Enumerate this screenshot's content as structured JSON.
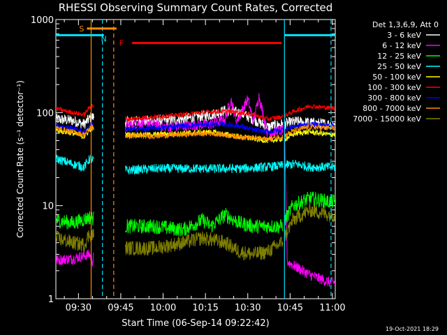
{
  "chart_data": {
    "type": "line",
    "title": "RHESSI Observing Summary Count Rates, Corrected",
    "xlabel": "Start Time (06-Sep-14 09:22:42)",
    "ylabel": "Corrected Count Rate (s⁻¹ detector⁻¹)",
    "ylim": [
      1,
      1000
    ],
    "yscale": "log",
    "yticks": [
      {
        "value": 1,
        "label": "1"
      },
      {
        "value": 10,
        "label": "10"
      },
      {
        "value": 100,
        "label": "100"
      },
      {
        "value": 1000,
        "label": "1000"
      }
    ],
    "xlim_min": [
      0,
      99
    ],
    "xticks": [
      {
        "min": 8,
        "label": "09:30"
      },
      {
        "min": 23,
        "label": "09:45"
      },
      {
        "min": 38,
        "label": "10:00"
      },
      {
        "min": 53,
        "label": "10:15"
      },
      {
        "min": 68,
        "label": "10:30"
      },
      {
        "min": 83,
        "label": "10:45"
      },
      {
        "min": 98,
        "label": "11:00"
      }
    ],
    "legend_title": "Det 1,3,6,9, Att 0",
    "legend_position": "top-right",
    "timestamp": "19-Oct-2021 18:29",
    "flags": [
      {
        "label": "S",
        "color": "#ff8c00",
        "start_min": 11,
        "end_min": 21.5,
        "level": 800
      },
      {
        "label": "N",
        "color": "#00e5ff"
      },
      {
        "label": "F",
        "color": "#ff0000",
        "start_min": 27,
        "end_min": 80,
        "level": 560
      }
    ],
    "night_bars": [
      {
        "start_min": 0,
        "end_min": 17,
        "level": 680,
        "color": "#00e5ff"
      },
      {
        "start_min": 81,
        "end_min": 99,
        "level": 680,
        "color": "#00e5ff"
      }
    ],
    "vlines": [
      {
        "min": 12.5,
        "color": "#ff8c00",
        "style": "solid"
      },
      {
        "min": 16.5,
        "color": "#00e5ff",
        "style": "dashed"
      },
      {
        "min": 20.5,
        "color": "#ff8c00",
        "style": "dashed"
      },
      {
        "min": 81,
        "color": "#00e5ff",
        "style": "solid"
      },
      {
        "min": 97.5,
        "color": "#00e5ff",
        "style": "dashed"
      }
    ],
    "gaps": [
      [
        13.5,
        24.5
      ],
      [
        80.5,
        81
      ]
    ],
    "series": [
      {
        "name": "3 - 6 keV",
        "color": "#ffffff",
        "points": [
          [
            0,
            85
          ],
          [
            6,
            82
          ],
          [
            10,
            75
          ],
          [
            12.5,
            90
          ],
          [
            25,
            80
          ],
          [
            35,
            82
          ],
          [
            45,
            85
          ],
          [
            55,
            95
          ],
          [
            60,
            105
          ],
          [
            65,
            100
          ],
          [
            70,
            85
          ],
          [
            75,
            70
          ],
          [
            80,
            75
          ],
          [
            85,
            80
          ],
          [
            90,
            78
          ],
          [
            97,
            75
          ]
        ]
      },
      {
        "name": "6 - 12 keV",
        "color": "#ff00ff",
        "points": [
          [
            0,
            2.6
          ],
          [
            6,
            2.7
          ],
          [
            12,
            3
          ],
          [
            13,
            2.5
          ],
          [
            25,
            72
          ],
          [
            32,
            80
          ],
          [
            38,
            70
          ],
          [
            45,
            72
          ],
          [
            55,
            75
          ],
          [
            60,
            85
          ],
          [
            62,
            140
          ],
          [
            64,
            80
          ],
          [
            68,
            140
          ],
          [
            70,
            80
          ],
          [
            72,
            150
          ],
          [
            75,
            60
          ],
          [
            81,
            65
          ],
          [
            82,
            2.5
          ],
          [
            90,
            1.8
          ],
          [
            97,
            1.5
          ]
        ]
      },
      {
        "name": "12 - 25 keV",
        "color": "#00ff00",
        "points": [
          [
            0,
            7
          ],
          [
            6,
            6.5
          ],
          [
            12,
            7.5
          ],
          [
            25,
            6
          ],
          [
            35,
            6
          ],
          [
            45,
            5.5
          ],
          [
            52,
            7
          ],
          [
            55,
            6
          ],
          [
            60,
            8
          ],
          [
            65,
            6.5
          ],
          [
            70,
            6
          ],
          [
            75,
            6
          ],
          [
            80,
            6
          ],
          [
            84,
            10
          ],
          [
            90,
            12
          ],
          [
            97,
            11
          ]
        ]
      },
      {
        "name": "25 - 50 keV",
        "color": "#00ffff",
        "points": [
          [
            0,
            32
          ],
          [
            6,
            28
          ],
          [
            10,
            26
          ],
          [
            12,
            32
          ],
          [
            25,
            24
          ],
          [
            35,
            25
          ],
          [
            45,
            25
          ],
          [
            55,
            25
          ],
          [
            65,
            25
          ],
          [
            75,
            26
          ],
          [
            85,
            28
          ],
          [
            90,
            26
          ],
          [
            97,
            26
          ]
        ]
      },
      {
        "name": "50 - 100 keV",
        "color": "#ffff00",
        "points": [
          [
            0,
            65
          ],
          [
            6,
            60
          ],
          [
            10,
            55
          ],
          [
            12.5,
            68
          ],
          [
            25,
            58
          ],
          [
            35,
            58
          ],
          [
            45,
            60
          ],
          [
            55,
            62
          ],
          [
            65,
            55
          ],
          [
            75,
            50
          ],
          [
            81,
            52
          ],
          [
            85,
            60
          ],
          [
            90,
            62
          ],
          [
            97,
            58
          ]
        ]
      },
      {
        "name": "100 - 300 keV",
        "color": "#ff0000",
        "points": [
          [
            0,
            110
          ],
          [
            6,
            100
          ],
          [
            10,
            95
          ],
          [
            12.5,
            120
          ],
          [
            25,
            85
          ],
          [
            35,
            90
          ],
          [
            45,
            95
          ],
          [
            55,
            102
          ],
          [
            60,
            103
          ],
          [
            65,
            100
          ],
          [
            70,
            95
          ],
          [
            75,
            85
          ],
          [
            80,
            90
          ],
          [
            85,
            105
          ],
          [
            90,
            118
          ],
          [
            97,
            112
          ]
        ]
      },
      {
        "name": "300 - 800 keV",
        "color": "#0000ff",
        "points": [
          [
            0,
            72
          ],
          [
            6,
            68
          ],
          [
            10,
            62
          ],
          [
            12.5,
            75
          ],
          [
            25,
            65
          ],
          [
            35,
            68
          ],
          [
            45,
            72
          ],
          [
            55,
            75
          ],
          [
            60,
            75
          ],
          [
            65,
            72
          ],
          [
            70,
            65
          ],
          [
            75,
            62
          ],
          [
            80,
            65
          ],
          [
            85,
            72
          ],
          [
            90,
            75
          ],
          [
            97,
            73
          ]
        ]
      },
      {
        "name": "800 - 7000 keV",
        "color": "#ff8c00",
        "points": [
          [
            0,
            68
          ],
          [
            6,
            62
          ],
          [
            10,
            58
          ],
          [
            12.5,
            70
          ],
          [
            25,
            56
          ],
          [
            35,
            56
          ],
          [
            45,
            58
          ],
          [
            55,
            60
          ],
          [
            65,
            55
          ],
          [
            75,
            52
          ],
          [
            80,
            55
          ],
          [
            85,
            65
          ],
          [
            90,
            70
          ],
          [
            97,
            68
          ]
        ]
      },
      {
        "name": "7000 - 15000 keV",
        "color": "#808000",
        "points": [
          [
            0,
            4.5
          ],
          [
            6,
            4
          ],
          [
            10,
            3.8
          ],
          [
            12,
            5
          ],
          [
            25,
            3.5
          ],
          [
            35,
            3.5
          ],
          [
            45,
            4
          ],
          [
            52,
            4.5
          ],
          [
            60,
            4
          ],
          [
            65,
            3.2
          ],
          [
            70,
            3
          ],
          [
            75,
            3.2
          ],
          [
            80,
            4
          ],
          [
            84,
            7
          ],
          [
            90,
            9
          ],
          [
            97,
            8
          ]
        ]
      }
    ]
  }
}
